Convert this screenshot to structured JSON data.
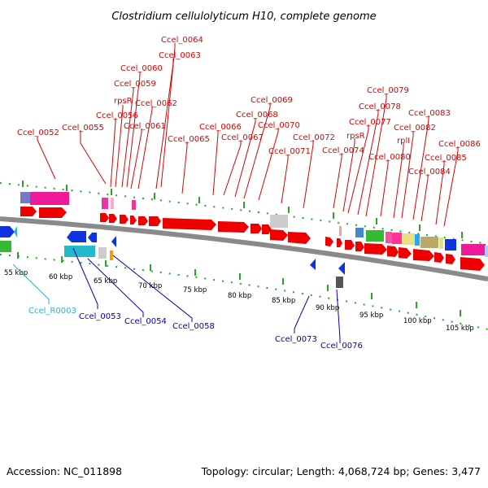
{
  "title": "Clostridium cellulolyticum H10, complete genome",
  "footer": {
    "accession": "Accession: NC_011898",
    "summary": "Topology: circular; Length: 4,068,724 bp; Genes: 3,477"
  },
  "colors": {
    "plus_label": "#dd0000",
    "minus_label": "#0000bb",
    "rna_label": "#33aadd",
    "backbone": "#8a8a8a",
    "dots": "#22aa22"
  },
  "ticks": [
    "55 kbp",
    "60 kbp",
    "65 kbp",
    "70 kbp",
    "75 kbp",
    "80 kbp",
    "85 kbp",
    "90 kbp",
    "95 kbp",
    "100 kbp",
    "105 kbp"
  ],
  "labels_top": [
    "Ccel_0064",
    "Ccel_0063",
    "Ccel_0060",
    "Ccel_0059",
    "rpsR",
    "Ccel_0062",
    "Ccel_0056",
    "Ccel_0061",
    "Ccel_0052",
    "Ccel_0055",
    "Ccel_0066",
    "Ccel_0065",
    "Ccel_0069",
    "Ccel_0068",
    "Ccel_0067",
    "Ccel_0070",
    "Ccel_0071",
    "Ccel_0072",
    "Ccel_0079",
    "Ccel_0078",
    "Ccel_0077",
    "rpsR",
    "Ccel_0074",
    "Ccel_0083",
    "Ccel_0082",
    "rplI",
    "Ccel_0080",
    "Ccel_0086",
    "Ccel_0085",
    "Ccel_0084"
  ],
  "labels_bottom": [
    "Ccel_R0003",
    "Ccel_0053",
    "Ccel_0054",
    "Ccel_0058",
    "Ccel_0073",
    "Ccel_0076"
  ]
}
